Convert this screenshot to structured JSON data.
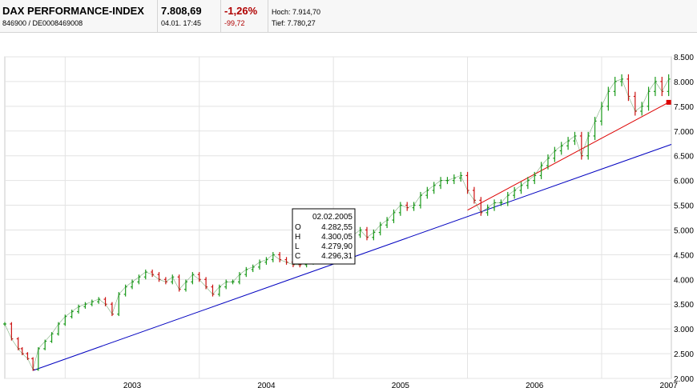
{
  "header": {
    "name": "DAX PERFORMANCE-INDEX",
    "ids": "846900  /  DE0008469008",
    "last": "7.808,69",
    "timestamp": "04.01. 17:45",
    "change_pct": "-1,26%",
    "change_abs": "-99,72",
    "high": "Hoch: 7.914,70",
    "low": "Tief: 7.780,27",
    "negative_color": "#b00000"
  },
  "tooltip": {
    "date": "02.02.2005",
    "rows": [
      {
        "k": "O",
        "v": "4.282,55"
      },
      {
        "k": "H",
        "v": "4.300,05"
      },
      {
        "k": "L",
        "v": "4.279,90"
      },
      {
        "k": "C",
        "v": "4.296,31"
      }
    ]
  },
  "chart_data": {
    "type": "line",
    "style": "ohlc",
    "grid": true,
    "ylim": [
      2000,
      8500
    ],
    "xlim": [
      2002.55,
      2007.52
    ],
    "y_ticks": [
      "2.000",
      "2.500",
      "3.000",
      "3.500",
      "4.000",
      "4.500",
      "5.000",
      "5.500",
      "6.000",
      "6.500",
      "7.000",
      "7.500",
      "8.000",
      "8.500"
    ],
    "y_tick_values": [
      2000,
      2500,
      3000,
      3500,
      4000,
      4500,
      5000,
      5500,
      6000,
      6500,
      7000,
      7500,
      8000,
      8500
    ],
    "x_ticks": [
      "2003",
      "2004",
      "2005",
      "2006",
      "2007"
    ],
    "x_tick_values": [
      2003,
      2004,
      2005,
      2006,
      2007
    ],
    "series": [
      {
        "x": [
          2002.55,
          2002.6,
          2002.65,
          2002.68,
          2002.72,
          2002.76,
          2002.8,
          2002.85,
          2002.9,
          2002.95,
          2003.0,
          2003.05,
          2003.1,
          2003.15,
          2003.2,
          2003.25,
          2003.3,
          2003.35,
          2003.4,
          2003.45,
          2003.5,
          2003.55,
          2003.6,
          2003.65,
          2003.7,
          2003.75,
          2003.8,
          2003.85,
          2003.9,
          2003.95,
          2004.0,
          2004.05,
          2004.1,
          2004.15,
          2004.2,
          2004.25,
          2004.3,
          2004.35,
          2004.4,
          2004.45,
          2004.5,
          2004.55,
          2004.6,
          2004.65,
          2004.7,
          2004.75,
          2004.8,
          2004.85,
          2004.9,
          2004.95,
          2005.0,
          2005.05,
          2005.1,
          2005.15,
          2005.2,
          2005.25,
          2005.3,
          2005.35,
          2005.4,
          2005.45,
          2005.5,
          2005.55,
          2005.6,
          2005.65,
          2005.7,
          2005.75,
          2005.8,
          2005.85,
          2005.9,
          2005.95,
          2006.0,
          2006.05,
          2006.1,
          2006.15,
          2006.2,
          2006.25,
          2006.3,
          2006.35,
          2006.4,
          2006.45,
          2006.5,
          2006.55,
          2006.6,
          2006.65,
          2006.7,
          2006.75,
          2006.8,
          2006.85,
          2006.9,
          2006.95,
          2007.0,
          2007.05,
          2007.1,
          2007.15,
          2007.2,
          2007.25,
          2007.3,
          2007.35,
          2007.4,
          2007.45,
          2007.5
        ],
        "values": [
          3100,
          2800,
          2600,
          2500,
          2400,
          2180,
          2600,
          2750,
          2900,
          3100,
          3250,
          3350,
          3450,
          3500,
          3550,
          3600,
          3500,
          3300,
          3700,
          3850,
          3950,
          4050,
          4150,
          4100,
          4000,
          3950,
          4050,
          3800,
          3950,
          4100,
          4000,
          3850,
          3700,
          3850,
          3950,
          3950,
          4100,
          4200,
          4250,
          4350,
          4400,
          4500,
          4400,
          4350,
          4300,
          4296,
          4350,
          4450,
          4500,
          4500,
          4550,
          4650,
          4750,
          4900,
          5000,
          4850,
          4950,
          5100,
          5200,
          5350,
          5500,
          5450,
          5500,
          5700,
          5800,
          5900,
          6000,
          6000,
          6050,
          6100,
          5800,
          5600,
          5350,
          5450,
          5550,
          5550,
          5700,
          5800,
          5900,
          6000,
          6100,
          6300,
          6450,
          6600,
          6700,
          6800,
          6900,
          6500,
          6900,
          7200,
          7500,
          7800,
          8000,
          8050,
          7700,
          7400,
          7500,
          7800,
          8000,
          7800,
          8050
        ]
      }
    ],
    "trendlines": [
      {
        "color": "#0000c0",
        "from": [
          2002.76,
          2160
        ],
        "to": [
          2007.52,
          6730
        ]
      },
      {
        "color": "#dd0000",
        "from": [
          2006.0,
          5400
        ],
        "to": [
          2007.5,
          7580
        ]
      }
    ]
  }
}
